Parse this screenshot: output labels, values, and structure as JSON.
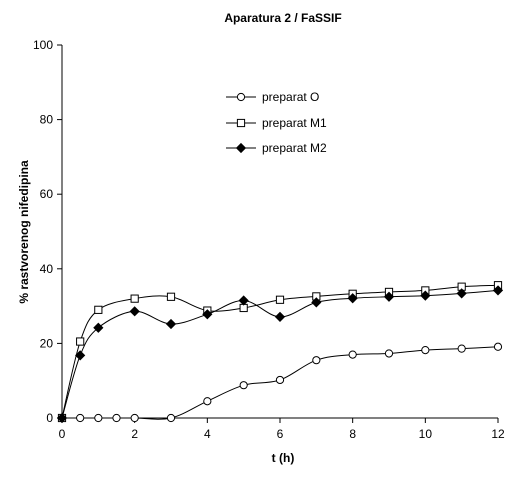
{
  "chart_data": {
    "type": "line",
    "title": "Aparatura 2 / FaSSIF",
    "xlabel": "t (h)",
    "ylabel": "% rastvorenog nifedipina",
    "xlim": [
      0,
      12
    ],
    "ylim": [
      0,
      100
    ],
    "x_ticks": [
      0,
      2,
      4,
      6,
      8,
      10,
      12
    ],
    "y_ticks": [
      0,
      20,
      40,
      60,
      80,
      100
    ],
    "grid": false,
    "legend_position": "upper-center inside plot",
    "series": [
      {
        "name": "preparat O",
        "marker": "open-circle",
        "x": [
          0,
          0.5,
          1,
          1.5,
          2,
          3,
          4,
          5,
          6,
          7,
          8,
          9,
          10,
          11,
          12
        ],
        "y": [
          0,
          0,
          0,
          0,
          0,
          0,
          4.5,
          8.8,
          10.2,
          15.5,
          17,
          17.3,
          18.2,
          18.6,
          19.1
        ]
      },
      {
        "name": "preparat M1",
        "marker": "open-square",
        "x": [
          0,
          0.5,
          1,
          2,
          3,
          4,
          5,
          6,
          7,
          8,
          9,
          10,
          11,
          12
        ],
        "y": [
          0,
          20.5,
          29,
          32,
          32.5,
          28.8,
          29.5,
          31.7,
          32.6,
          33.3,
          33.8,
          34.2,
          35.2,
          35.6
        ]
      },
      {
        "name": "preparat M2",
        "marker": "filled-diamond",
        "x": [
          0,
          0.5,
          1,
          2,
          3,
          4,
          5,
          6,
          7,
          8,
          9,
          10,
          11,
          12
        ],
        "y": [
          0,
          16.8,
          24.2,
          28.6,
          25.2,
          27.8,
          31.5,
          27.1,
          31,
          32.1,
          32.5,
          32.8,
          33.4,
          34.2
        ]
      }
    ]
  }
}
